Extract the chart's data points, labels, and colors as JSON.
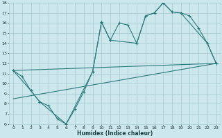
{
  "xlabel": "Humidex (Indice chaleur)",
  "background_color": "#cce8ec",
  "grid_color": "#aacdd4",
  "line_color": "#2a7a7a",
  "xlim": [
    -0.5,
    23.5
  ],
  "ylim": [
    6,
    18
  ],
  "xticks": [
    0,
    1,
    2,
    3,
    4,
    5,
    6,
    7,
    8,
    9,
    10,
    11,
    12,
    13,
    14,
    15,
    16,
    17,
    18,
    19,
    20,
    21,
    22,
    23
  ],
  "yticks": [
    6,
    7,
    8,
    9,
    10,
    11,
    12,
    13,
    14,
    15,
    16,
    17,
    18
  ],
  "line1_x": [
    0,
    1,
    2,
    3,
    4,
    5,
    6,
    7,
    8,
    9,
    10,
    11,
    12,
    13,
    14,
    15,
    16,
    17,
    18,
    19,
    20,
    21,
    22,
    23
  ],
  "line1_y": [
    11.3,
    10.7,
    9.3,
    8.2,
    7.8,
    6.5,
    6.0,
    7.5,
    9.2,
    11.2,
    16.1,
    14.3,
    16.0,
    15.8,
    14.0,
    16.7,
    17.0,
    18.0,
    17.1,
    17.0,
    16.7,
    15.5,
    14.0,
    12.0
  ],
  "line2_x": [
    0,
    2,
    3,
    6,
    9,
    10,
    11,
    14,
    15,
    16,
    17,
    18,
    19,
    22,
    23
  ],
  "line2_y": [
    11.3,
    9.3,
    8.2,
    6.0,
    11.2,
    16.1,
    14.3,
    14.0,
    16.7,
    17.0,
    18.0,
    17.1,
    17.0,
    14.0,
    12.0
  ],
  "line3_x": [
    0,
    23
  ],
  "line3_y": [
    11.3,
    12.0
  ],
  "line4_x": [
    0,
    23
  ],
  "line4_y": [
    8.5,
    12.0
  ]
}
